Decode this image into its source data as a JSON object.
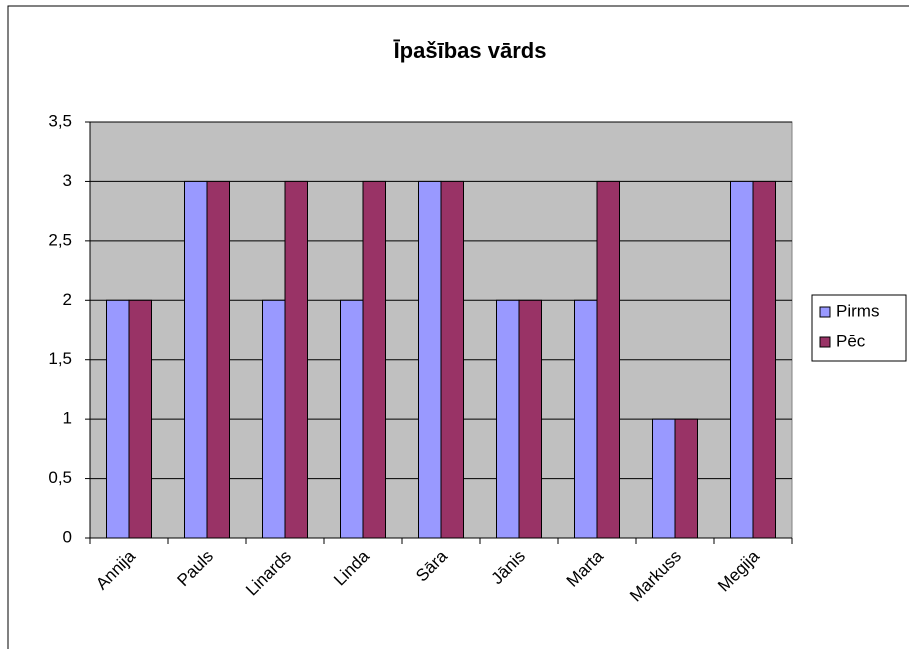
{
  "chart_data": {
    "type": "bar",
    "title": "Īpašības vārds",
    "categories": [
      "Annija",
      "Pauls",
      "Linards",
      "Linda",
      "Sāra",
      "Jānis",
      "Marta",
      "Markuss",
      "Megija"
    ],
    "series": [
      {
        "name": "Pirms",
        "color": "#9999ff",
        "values": [
          2,
          3,
          2,
          2,
          3,
          2,
          2,
          1,
          3
        ]
      },
      {
        "name": "Pēc",
        "color": "#993366",
        "values": [
          2,
          3,
          3,
          3,
          3,
          2,
          3,
          1,
          3
        ]
      }
    ],
    "ylim": [
      0,
      3.5
    ],
    "yticks": [
      0,
      {
        "value": 0.5,
        "label": "0,5"
      },
      1,
      {
        "value": 1.5,
        "label": "1,5"
      },
      2,
      {
        "value": 2.5,
        "label": "2,5"
      },
      3,
      {
        "value": 3.5,
        "label": "3,5"
      }
    ],
    "grid": true,
    "legend": "right",
    "plot_background": "#c0c0c0"
  }
}
